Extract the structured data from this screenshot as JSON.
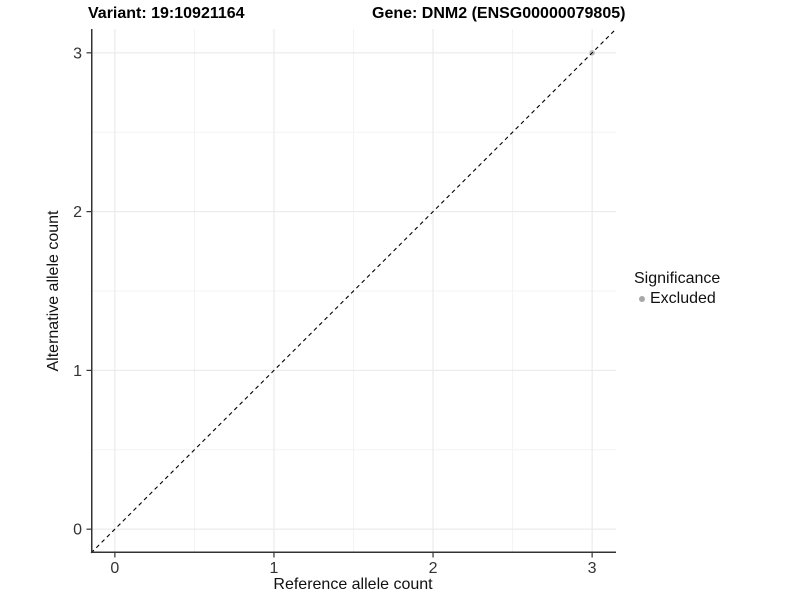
{
  "header": {
    "left_title": "Variant: 19:10921164",
    "right_title": "Gene: DNM2 (ENSG00000079805)"
  },
  "chart_data": {
    "type": "scatter",
    "xlabel": "Reference allele count",
    "ylabel": "Alternative allele count",
    "xlim": [
      -0.15,
      3.15
    ],
    "ylim": [
      -0.15,
      3.15
    ],
    "xticks": [
      0,
      1,
      2,
      3
    ],
    "yticks": [
      0,
      1,
      2,
      3
    ],
    "minor_ticks": [
      0.5,
      1.5,
      2.5
    ],
    "grid": "major and minor gridlines, white panel background",
    "series": [
      {
        "name": "Excluded",
        "color": "#bdbdbd",
        "points": [
          {
            "x": 3,
            "y": 3
          }
        ]
      }
    ],
    "reference_line": {
      "type": "abline",
      "slope": 1,
      "intercept": 0,
      "style": "dashed",
      "color": "#000000"
    },
    "legend": {
      "position": "right",
      "title": "Significance",
      "entries": [
        {
          "label": "Excluded",
          "color": "#a8a8a8"
        }
      ]
    }
  },
  "colors": {
    "background": "#ffffff",
    "grid_major": "#e8e8e8",
    "grid_minor": "#f3f3f3",
    "axis_line": "#333333",
    "tick_mark": "#333333",
    "tick_label": "#333333",
    "title_text": "#000000",
    "diagonal_line": "#000000",
    "point": "#bdbdbd",
    "legend_dot": "#a8a8a8"
  }
}
